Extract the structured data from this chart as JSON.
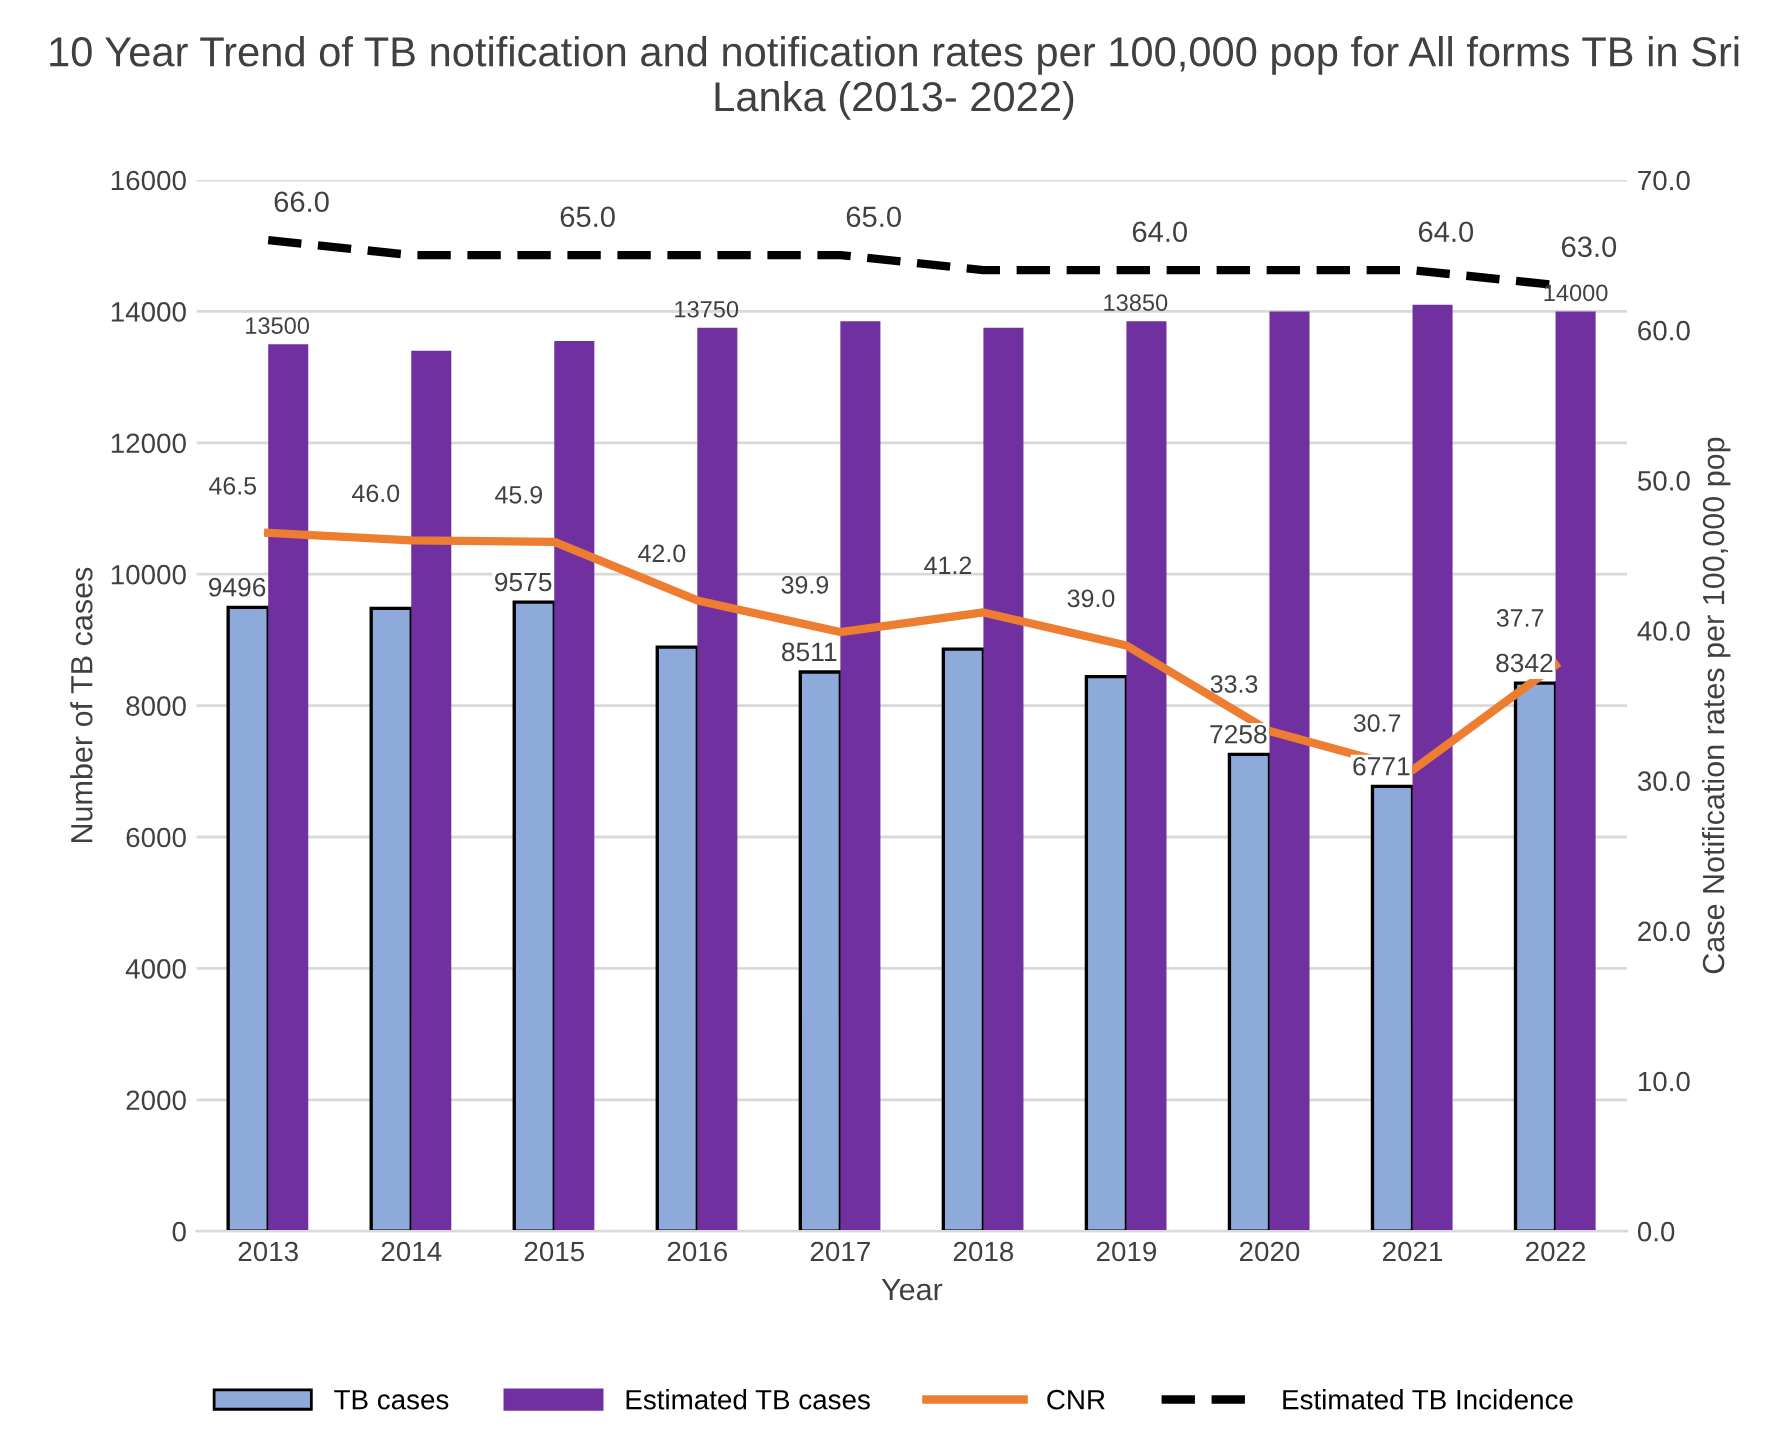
{
  "chart_data": {
    "type": "bar",
    "title": "10 Year Trend of TB notification and notification rates per 100,000 pop for All forms TB in Sri Lanka (2013- 2022)",
    "xlabel": "Year",
    "ylabel": "Number of TB cases",
    "y2label": "Case Notification rates per 100,000 pop",
    "categories": [
      "2013",
      "2014",
      "2015",
      "2016",
      "2017",
      "2018",
      "2019",
      "2020",
      "2021",
      "2022"
    ],
    "series": [
      {
        "name": "TB cases",
        "color": "#8eaadb",
        "values": [
          9496,
          9480,
          9575,
          8890,
          8511,
          8860,
          8440,
          7258,
          6771,
          8342
        ],
        "value_labels": [
          "9496",
          null,
          "9575",
          null,
          "8511",
          null,
          null,
          "7258",
          "6771",
          "8342"
        ]
      },
      {
        "name": "Estimated TB cases",
        "color": "#7030a0",
        "values": [
          13500,
          13400,
          13550,
          13750,
          13850,
          13750,
          13850,
          14000,
          14100,
          14000
        ],
        "value_labels": [
          "13500",
          null,
          null,
          "13750",
          null,
          null,
          "13850",
          null,
          null,
          "14000"
        ]
      },
      {
        "name": "CNR",
        "type": "line",
        "axis": "y2",
        "color": "#ed7d31",
        "line_style": "solid",
        "values": [
          46.5,
          46.0,
          45.9,
          42.0,
          39.9,
          41.2,
          39.0,
          33.3,
          30.7,
          37.7
        ],
        "value_labels": [
          "46.5",
          "46.0",
          "45.9",
          "42.0",
          "39.9",
          "41.2",
          "39.0",
          "33.3",
          "30.7",
          "37.7"
        ]
      },
      {
        "name": "Estimated TB Incidence",
        "type": "line",
        "axis": "y2",
        "color": "#000000",
        "line_style": "dashed",
        "values": [
          66.0,
          65.0,
          65.0,
          65.0,
          65.0,
          64.0,
          64.0,
          64.0,
          64.0,
          63.0
        ],
        "value_labels": [
          "66.0",
          null,
          "65.0",
          null,
          "65.0",
          null,
          "64.0",
          null,
          "64.0",
          "63.0"
        ]
      }
    ],
    "ylim": [
      0,
      16000
    ],
    "yticks": [
      0,
      2000,
      4000,
      6000,
      8000,
      10000,
      12000,
      14000,
      16000
    ],
    "y2lim": [
      0,
      70
    ],
    "y2ticks": [
      {
        "value": 0,
        "label": "0.0"
      },
      {
        "value": 10,
        "label": "10.0"
      },
      {
        "value": 20,
        "label": "20.0"
      },
      {
        "value": 30,
        "label": "30.0"
      },
      {
        "value": 40,
        "label": "40.0"
      },
      {
        "value": 50,
        "label": "50.0"
      },
      {
        "value": 60,
        "label": "60.0"
      },
      {
        "value": 70,
        "label": "70.0"
      }
    ],
    "grid": "y",
    "legend": "bottom",
    "marker": "none"
  }
}
